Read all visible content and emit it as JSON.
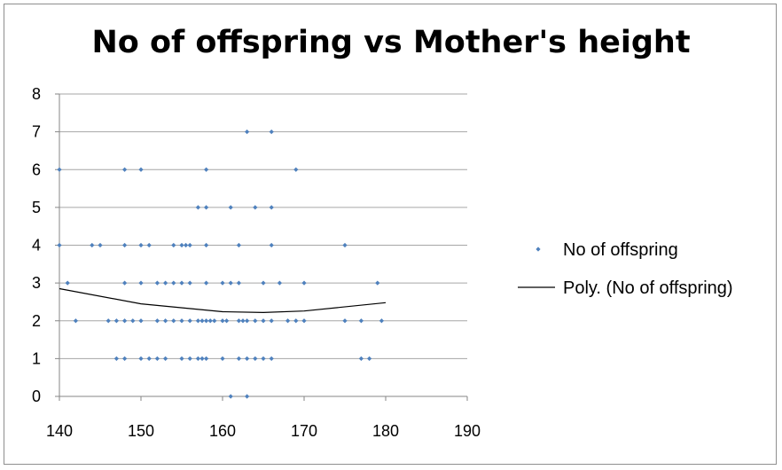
{
  "chart_data": {
    "type": "scatter",
    "title": "No of offspring vs Mother's height",
    "xlabel": "",
    "ylabel": "",
    "xlim": [
      140,
      190
    ],
    "ylim": [
      0,
      8
    ],
    "xticks": [
      140,
      150,
      160,
      170,
      180,
      190
    ],
    "yticks": [
      0,
      1,
      2,
      3,
      4,
      5,
      6,
      7,
      8
    ],
    "grid": "horizontal",
    "legend": "right",
    "colors": {
      "points": "#4f81bd",
      "trend": "#000000",
      "grid": "#a6a6a6"
    },
    "series": [
      {
        "name": "No of offspring",
        "points": [
          [
            161,
            0
          ],
          [
            163,
            0
          ],
          [
            147,
            1
          ],
          [
            148,
            1
          ],
          [
            150,
            1
          ],
          [
            151,
            1
          ],
          [
            152,
            1
          ],
          [
            153,
            1
          ],
          [
            155,
            1
          ],
          [
            156,
            1
          ],
          [
            157,
            1
          ],
          [
            157.5,
            1
          ],
          [
            158,
            1
          ],
          [
            160,
            1
          ],
          [
            162,
            1
          ],
          [
            163,
            1
          ],
          [
            164,
            1
          ],
          [
            165,
            1
          ],
          [
            166,
            1
          ],
          [
            177,
            1
          ],
          [
            178,
            1
          ],
          [
            142,
            2
          ],
          [
            146,
            2
          ],
          [
            147,
            2
          ],
          [
            148,
            2
          ],
          [
            149,
            2
          ],
          [
            150,
            2
          ],
          [
            152,
            2
          ],
          [
            153,
            2
          ],
          [
            154,
            2
          ],
          [
            155,
            2
          ],
          [
            156,
            2
          ],
          [
            157,
            2
          ],
          [
            157.5,
            2
          ],
          [
            158,
            2
          ],
          [
            158.5,
            2
          ],
          [
            159,
            2
          ],
          [
            160,
            2
          ],
          [
            160.5,
            2
          ],
          [
            162,
            2
          ],
          [
            162.5,
            2
          ],
          [
            163,
            2
          ],
          [
            164,
            2
          ],
          [
            165,
            2
          ],
          [
            166,
            2
          ],
          [
            168,
            2
          ],
          [
            169,
            2
          ],
          [
            170,
            2
          ],
          [
            175,
            2
          ],
          [
            177,
            2
          ],
          [
            179.5,
            2
          ],
          [
            141,
            3
          ],
          [
            148,
            3
          ],
          [
            150,
            3
          ],
          [
            152,
            3
          ],
          [
            153,
            3
          ],
          [
            154,
            3
          ],
          [
            155,
            3
          ],
          [
            156,
            3
          ],
          [
            158,
            3
          ],
          [
            160,
            3
          ],
          [
            161,
            3
          ],
          [
            162,
            3
          ],
          [
            165,
            3
          ],
          [
            167,
            3
          ],
          [
            170,
            3
          ],
          [
            179,
            3
          ],
          [
            140,
            4
          ],
          [
            144,
            4
          ],
          [
            145,
            4
          ],
          [
            148,
            4
          ],
          [
            150,
            4
          ],
          [
            151,
            4
          ],
          [
            154,
            4
          ],
          [
            155,
            4
          ],
          [
            155.5,
            4
          ],
          [
            156,
            4
          ],
          [
            158,
            4
          ],
          [
            162,
            4
          ],
          [
            166,
            4
          ],
          [
            175,
            4
          ],
          [
            157,
            5
          ],
          [
            158,
            5
          ],
          [
            161,
            5
          ],
          [
            164,
            5
          ],
          [
            166,
            5
          ],
          [
            140,
            6
          ],
          [
            148,
            6
          ],
          [
            150,
            6
          ],
          [
            158,
            6
          ],
          [
            169,
            6
          ],
          [
            163,
            7
          ],
          [
            166,
            7
          ]
        ]
      },
      {
        "name": "Poly. (No of offspring)",
        "type": "trendline",
        "fit": "polynomial-2",
        "points": [
          [
            140,
            2.85
          ],
          [
            150,
            2.45
          ],
          [
            160,
            2.24
          ],
          [
            165,
            2.22
          ],
          [
            170,
            2.26
          ],
          [
            180,
            2.48
          ]
        ]
      }
    ]
  }
}
